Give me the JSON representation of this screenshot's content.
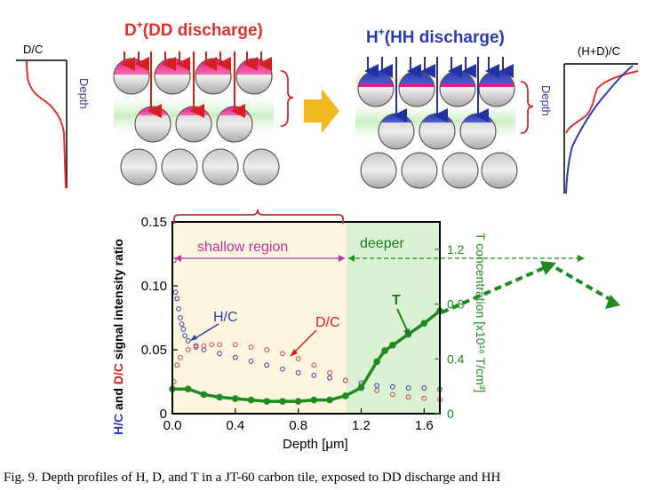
{
  "schematic": {
    "left_profile_label": "D/C",
    "left_depth_label": "Depth",
    "dd_title_sup": "+",
    "dd_title_prefix": "D",
    "dd_title_rest": "(DD discharge)",
    "hh_title_prefix": "H",
    "hh_title_sup": "+",
    "hh_title_rest": "(HH discharge)",
    "right_profile_label": "(H+D)/C",
    "right_depth_label": "Depth"
  },
  "chart_data": {
    "type": "scatter",
    "xlabel": "Depth [μm]",
    "ylabel_left_parts": [
      "H/C",
      " and ",
      "D/C",
      " signal intensity ratio"
    ],
    "ylabel_right": "T concentration [x10¹⁶ T/cm³]",
    "xlim": [
      0.0,
      1.7
    ],
    "ylim_left": [
      0,
      0.15
    ],
    "ylim_right": [
      0,
      1.4
    ],
    "x_ticks": [
      "0.0",
      "0.4",
      "0.8",
      "1.2",
      "1.6"
    ],
    "y_ticks_left": [
      "0",
      "0.05",
      "0.10",
      "0.15"
    ],
    "y_ticks_right": [
      "0",
      "0.4",
      "0.8",
      "1.2"
    ],
    "regions": [
      {
        "label": "shallow region",
        "x": [
          0.0,
          1.1
        ],
        "color": "#fbf6dd"
      },
      {
        "label": "deeper",
        "x": [
          1.1,
          1.7
        ],
        "color": "#d9f2d3"
      }
    ],
    "annotations": [
      "H/C",
      "D/C",
      "T"
    ],
    "series": [
      {
        "name": "H/C",
        "axis": "left",
        "marker": "open-circle",
        "color": "#3a3aa8",
        "x": [
          0.01,
          0.02,
          0.03,
          0.04,
          0.05,
          0.06,
          0.07,
          0.08,
          0.1,
          0.15,
          0.2,
          0.3,
          0.4,
          0.5,
          0.6,
          0.7,
          0.8,
          0.9,
          1.0,
          1.1,
          1.2,
          1.3,
          1.4,
          1.5,
          1.6,
          1.7
        ],
        "y": [
          0.12,
          0.095,
          0.09,
          0.082,
          0.075,
          0.07,
          0.066,
          0.061,
          0.057,
          0.053,
          0.05,
          0.047,
          0.044,
          0.041,
          0.038,
          0.035,
          0.032,
          0.03,
          0.028,
          0.026,
          0.024,
          0.022,
          0.021,
          0.02,
          0.02,
          0.019
        ]
      },
      {
        "name": "D/C",
        "axis": "left",
        "marker": "open-circle",
        "color": "#e04040",
        "x": [
          0.01,
          0.03,
          0.05,
          0.1,
          0.15,
          0.2,
          0.25,
          0.3,
          0.4,
          0.5,
          0.6,
          0.7,
          0.8,
          0.9,
          1.0,
          1.1,
          1.2,
          1.3,
          1.4,
          1.5,
          1.6,
          1.7
        ],
        "y": [
          0.025,
          0.038,
          0.044,
          0.05,
          0.052,
          0.053,
          0.054,
          0.054,
          0.054,
          0.052,
          0.05,
          0.047,
          0.043,
          0.038,
          0.032,
          0.026,
          0.022,
          0.018,
          0.015,
          0.013,
          0.012,
          0.011
        ]
      },
      {
        "name": "T",
        "axis": "right",
        "marker": "filled-circle",
        "color": "#1f8a1f",
        "x": [
          0.0,
          0.1,
          0.2,
          0.3,
          0.4,
          0.5,
          0.6,
          0.7,
          0.8,
          0.9,
          1.0,
          1.1,
          1.2,
          1.3,
          1.35,
          1.4,
          1.5,
          1.6,
          1.7
        ],
        "y": [
          0.18,
          0.18,
          0.14,
          0.12,
          0.11,
          0.1,
          0.09,
          0.09,
          0.09,
          0.1,
          0.1,
          0.13,
          0.19,
          0.38,
          0.46,
          0.5,
          0.58,
          0.66,
          0.75
        ]
      }
    ]
  },
  "caption": "Fig. 9. Depth profiles of H, D, and T in a JT-60 carbon tile, exposed to DD discharge and HH"
}
